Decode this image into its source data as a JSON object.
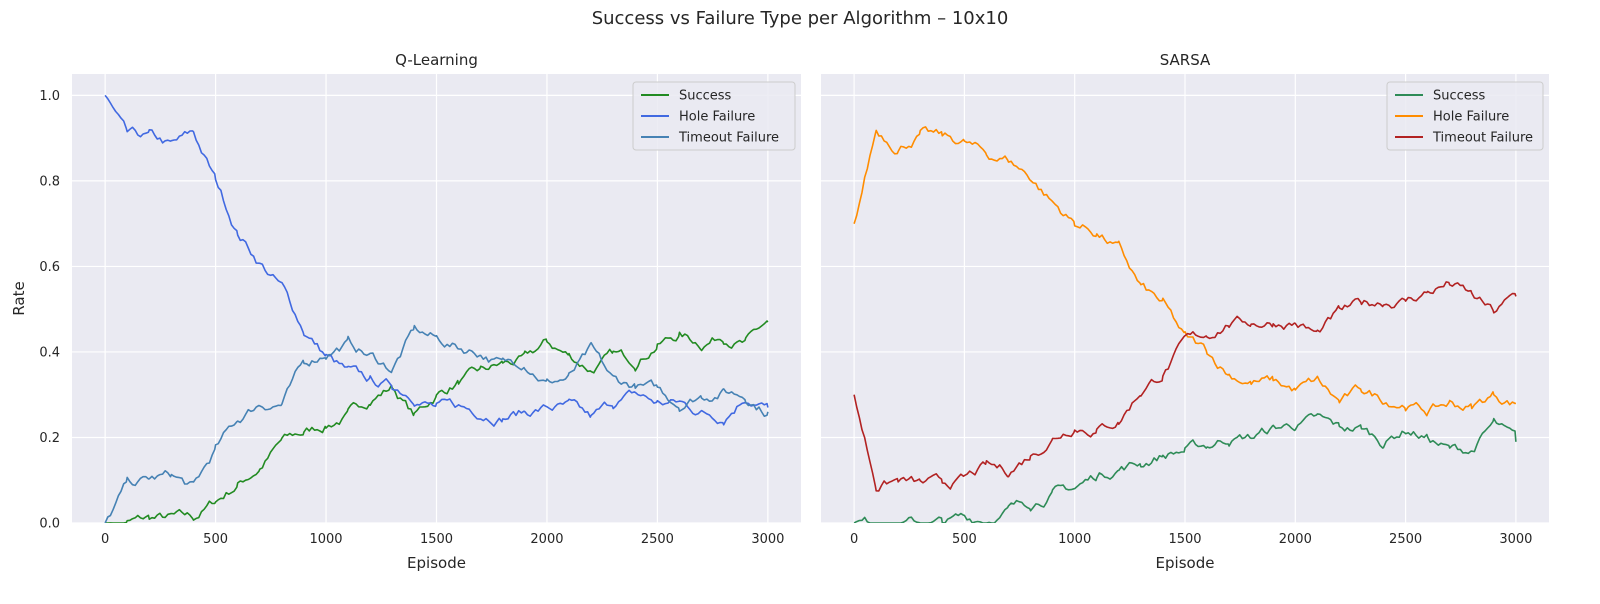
{
  "figure": {
    "suptitle": "Success vs Failure Type per Algorithm – 10x10",
    "ylabel": "Rate",
    "xlabel": "Episode"
  },
  "chart_data": [
    {
      "type": "line",
      "title": "Q-Learning",
      "xlabel": "Episode",
      "ylabel": "Rate",
      "xlim": [
        -150,
        3150
      ],
      "ylim": [
        0,
        1.05
      ],
      "xticks": [
        0,
        500,
        1000,
        1500,
        2000,
        2500,
        3000
      ],
      "yticks": [
        0.0,
        0.2,
        0.4,
        0.6,
        0.8,
        1.0
      ],
      "grid": true,
      "legend_position": "top-right",
      "x": [
        0,
        100,
        200,
        300,
        400,
        500,
        600,
        700,
        800,
        900,
        1000,
        1100,
        1200,
        1300,
        1400,
        1500,
        1600,
        1700,
        1800,
        1900,
        2000,
        2100,
        2200,
        2300,
        2400,
        2500,
        2600,
        2700,
        2800,
        2900,
        3000
      ],
      "series": [
        {
          "name": "Success",
          "color": "#228b22",
          "values": [
            0.0,
            0.0,
            0.01,
            0.01,
            0.01,
            0.05,
            0.09,
            0.13,
            0.19,
            0.21,
            0.23,
            0.25,
            0.29,
            0.32,
            0.25,
            0.3,
            0.33,
            0.35,
            0.37,
            0.38,
            0.42,
            0.39,
            0.36,
            0.39,
            0.38,
            0.42,
            0.44,
            0.42,
            0.44,
            0.42,
            0.47
          ]
        },
        {
          "name": "Hole Failure",
          "color": "#4169e1",
          "values": [
            1.0,
            0.9,
            0.9,
            0.88,
            0.91,
            0.8,
            0.68,
            0.61,
            0.55,
            0.45,
            0.39,
            0.35,
            0.33,
            0.32,
            0.3,
            0.27,
            0.27,
            0.26,
            0.25,
            0.26,
            0.27,
            0.27,
            0.24,
            0.28,
            0.3,
            0.28,
            0.28,
            0.26,
            0.25,
            0.3,
            0.27
          ]
        },
        {
          "name": "Timeout Failure",
          "color": "#4682b4",
          "values": [
            0.0,
            0.09,
            0.1,
            0.11,
            0.08,
            0.17,
            0.24,
            0.28,
            0.28,
            0.37,
            0.4,
            0.42,
            0.39,
            0.36,
            0.45,
            0.43,
            0.41,
            0.4,
            0.37,
            0.38,
            0.33,
            0.34,
            0.4,
            0.33,
            0.32,
            0.31,
            0.28,
            0.3,
            0.31,
            0.3,
            0.26
          ]
        }
      ]
    },
    {
      "type": "line",
      "title": "SARSA",
      "xlabel": "Episode",
      "ylabel": "",
      "xlim": [
        -150,
        3150
      ],
      "ylim": [
        0,
        1.05
      ],
      "xticks": [
        0,
        500,
        1000,
        1500,
        2000,
        2500,
        3000
      ],
      "yticks": [
        0.0,
        0.2,
        0.4,
        0.6,
        0.8,
        1.0
      ],
      "grid": true,
      "legend_position": "top-right",
      "x": [
        0,
        100,
        200,
        300,
        400,
        500,
        600,
        700,
        800,
        900,
        1000,
        1100,
        1200,
        1300,
        1400,
        1500,
        1600,
        1700,
        1800,
        1900,
        2000,
        2100,
        2200,
        2300,
        2400,
        2500,
        2600,
        2700,
        2800,
        2900,
        3000
      ],
      "series": [
        {
          "name": "Success",
          "color": "#2e8b57",
          "values": [
            0.0,
            0.0,
            0.0,
            0.0,
            0.0,
            0.01,
            0.01,
            0.03,
            0.05,
            0.07,
            0.08,
            0.11,
            0.13,
            0.14,
            0.16,
            0.17,
            0.18,
            0.2,
            0.2,
            0.22,
            0.23,
            0.24,
            0.22,
            0.22,
            0.19,
            0.22,
            0.2,
            0.17,
            0.17,
            0.23,
            0.19
          ]
        },
        {
          "name": "Hole Failure",
          "color": "#ff8c00",
          "values": [
            0.7,
            0.92,
            0.88,
            0.91,
            0.9,
            0.89,
            0.86,
            0.85,
            0.81,
            0.75,
            0.7,
            0.68,
            0.64,
            0.55,
            0.51,
            0.43,
            0.4,
            0.35,
            0.33,
            0.33,
            0.31,
            0.33,
            0.28,
            0.31,
            0.29,
            0.28,
            0.26,
            0.28,
            0.27,
            0.3,
            0.28
          ]
        },
        {
          "name": "Timeout Failure",
          "color": "#b22222",
          "values": [
            0.3,
            0.09,
            0.1,
            0.09,
            0.09,
            0.1,
            0.13,
            0.12,
            0.16,
            0.2,
            0.23,
            0.22,
            0.24,
            0.31,
            0.35,
            0.42,
            0.44,
            0.47,
            0.47,
            0.47,
            0.47,
            0.44,
            0.49,
            0.51,
            0.52,
            0.52,
            0.54,
            0.56,
            0.53,
            0.49,
            0.53
          ]
        }
      ]
    }
  ]
}
